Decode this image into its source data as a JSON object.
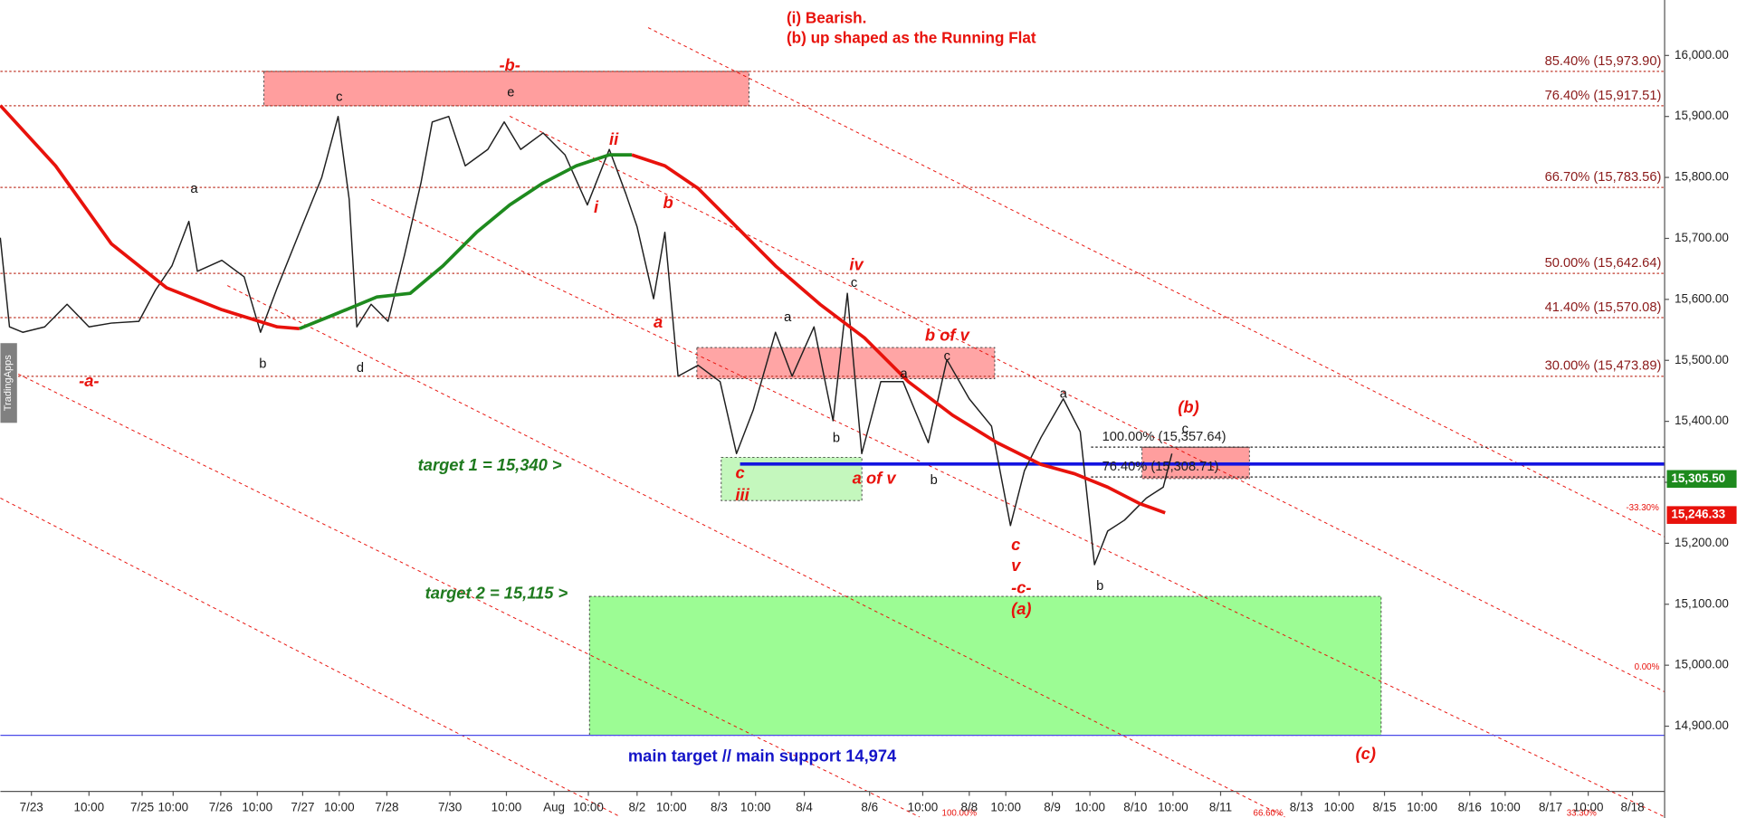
{
  "chart_data": {
    "type": "line",
    "notes": [
      "(i) Bearish.",
      "(b) up shaped as the Running Flat"
    ],
    "watermark": "TradingApps",
    "xticks": [
      "7/23",
      "10:00",
      "7/25",
      "10:00",
      "7/26",
      "10:00",
      "7/27",
      "10:00",
      "7/28",
      "7/30",
      "10:00",
      "Aug",
      "10:00",
      "8/2",
      "10:00",
      "8/3",
      "10:00",
      "8/4",
      "8/6",
      "10:00",
      "8/8",
      "10:00",
      "8/9",
      "10:00",
      "8/10",
      "10:00",
      "8/11",
      "8/13",
      "10:00",
      "8/15",
      "10:00",
      "8/16",
      "10:00",
      "8/17",
      "10:00",
      "8/18"
    ],
    "ylim": [
      14793,
      16091
    ],
    "yticks": [
      {
        "value": 14900,
        "label": "14,900.00"
      },
      {
        "value": 15000,
        "label": "15,000.00"
      },
      {
        "value": 15100,
        "label": "15,100.00"
      },
      {
        "value": 15200,
        "label": "15,200.00"
      },
      {
        "value": 15300,
        "label": "15,300.00"
      },
      {
        "value": 15400,
        "label": "15,400.00"
      },
      {
        "value": 15500,
        "label": "15,500.00"
      },
      {
        "value": 15600,
        "label": "15,600.00"
      },
      {
        "value": 15700,
        "label": "15,700.00"
      },
      {
        "value": 15800,
        "label": "15,800.00"
      },
      {
        "value": 15900,
        "label": "15,900.00"
      },
      {
        "value": 16000,
        "label": "16,000.00"
      }
    ],
    "series": [
      {
        "color": "#1f1f1f",
        "x": [
          -0.54,
          -0.38,
          -0.15,
          0.23,
          0.62,
          1.0,
          1.42,
          1.94,
          2.43,
          2.96,
          3.33,
          3.51,
          4.03,
          4.64,
          5.07,
          5.44,
          5.93,
          6.52,
          6.97,
          7.21,
          7.37,
          7.67,
          8.02,
          8.28,
          8.54,
          8.72,
          8.98,
          9.27,
          9.67,
          9.96,
          10.3,
          10.77,
          11.32,
          11.97,
          12.43,
          12.77,
          13.0,
          13.48,
          13.81,
          14.14,
          14.56,
          15.03,
          15.48,
          15.94,
          16.41,
          16.75,
          17.15,
          17.44,
          17.66,
          17.88,
          18.21,
          18.63,
          19.12,
          19.52,
          20.0,
          20.61,
          21.1,
          21.4,
          21.76,
          22.29,
          22.74,
          23.1,
          23.39,
          23.76,
          24.29,
          24.74,
          24.97
        ],
        "values": [
          15701,
          15555,
          15546,
          15555,
          15592,
          15555,
          15561,
          15564,
          15615,
          15655,
          15728,
          15646,
          15664,
          15637,
          15546,
          15619,
          15710,
          15800,
          15900,
          15764,
          15555,
          15592,
          15564,
          15673,
          15791,
          15891,
          15900,
          15819,
          15846,
          15891,
          15846,
          15873,
          15837,
          15755,
          15846,
          15773,
          15719,
          15601,
          15710,
          15474,
          15492,
          15465,
          15347,
          15419,
          15546,
          15474,
          15555,
          15401,
          15610,
          15347,
          15465,
          15465,
          15365,
          15501,
          15437,
          15392,
          15229,
          15319,
          15374,
          15437,
          15383,
          15165,
          15220,
          15238,
          15274,
          15292,
          15347
        ]
      },
      {
        "color": "#e8120c",
        "x": [
          -0.54,
          0.42,
          1.42,
          2.79,
          4.03,
          5.44,
          5.93,
          null,
          12.89,
          13.81,
          14.56,
          15.33,
          16.41,
          17.24,
          17.92,
          18.73,
          19.64,
          20.76,
          21.76,
          22.59,
          23.39,
          24.12,
          24.79
        ],
        "values": [
          15918,
          15819,
          15691,
          15619,
          15583,
          15555,
          15552,
          null,
          15837,
          15819,
          15782,
          15728,
          15655,
          15592,
          15537,
          15465,
          15410,
          15365,
          15329,
          15314,
          15292,
          15265,
          15250
        ]
      },
      {
        "color": "#1e8a1e",
        "x": [
          5.93,
          6.82,
          7.79,
          8.37,
          8.89,
          9.47,
          10.07,
          10.77,
          11.65,
          12.43,
          12.89
        ],
        "values": [
          15552,
          15574,
          15604,
          15610,
          15655,
          15710,
          15755,
          15791,
          15819,
          15837,
          15837
        ]
      }
    ],
    "fib_levels": [
      {
        "value": 15973.9,
        "label": "85.40% (15,973.90)"
      },
      {
        "value": 15917.51,
        "label": "76.40% (15,917.51)"
      },
      {
        "value": 15783.56,
        "label": "66.70% (15,783.56)"
      },
      {
        "value": 15642.64,
        "label": "50.00% (15,642.64)"
      },
      {
        "value": 15570.08,
        "label": "41.40% (15,570.08)"
      },
      {
        "value": 15473.89,
        "label": "30.00% (15,473.89)"
      }
    ],
    "fib_color": "#c0392b",
    "retracements": [
      {
        "value": 15357.64,
        "label": "100.00% (15,357.64)"
      },
      {
        "value": 15308.71,
        "label": "76.40% (15,308.71)"
      }
    ],
    "hlines": [
      {
        "value": 15330,
        "color": "#1414e0"
      },
      {
        "value": 14885,
        "color": "#4a4ae8"
      }
    ],
    "zones": [
      {
        "top": 15973.9,
        "bottom": 15917.51,
        "color": "#ff9e9e"
      },
      {
        "top": 15521,
        "bottom": 15470,
        "color": "#ffa5a5"
      },
      {
        "top": 15357.64,
        "bottom": 15306,
        "color": "#ff9e9e"
      },
      {
        "top": 15341,
        "bottom": 15270,
        "color": "#c4f7bd"
      },
      {
        "top": 15113,
        "bottom": 14885,
        "color": "#9cfc94"
      }
    ],
    "price_tags": [
      {
        "value": 15305.5,
        "label": "15,305.50",
        "color": "#1e8a1e"
      },
      {
        "value": 15246.33,
        "label": "15,246.33",
        "color": "#e8120c"
      }
    ],
    "channel_labels": [
      "-33.30%",
      "0.00%",
      "100.00%",
      "66.60%",
      "33.30%"
    ],
    "annotations": [
      {
        "text": "-b-",
        "color": "#e8120c"
      },
      {
        "text": "c",
        "color": "#111111"
      },
      {
        "text": "e",
        "color": "#111111"
      },
      {
        "text": "a",
        "color": "#111111"
      },
      {
        "text": "b",
        "color": "#111111"
      },
      {
        "text": "d",
        "color": "#111111"
      },
      {
        "text": "-a-",
        "color": "#e8120c"
      },
      {
        "text": "ii",
        "color": "#e8120c"
      },
      {
        "text": "i",
        "color": "#e8120c"
      },
      {
        "text": "b",
        "color": "#e8120c"
      },
      {
        "text": "a",
        "color": "#e8120c"
      },
      {
        "text": "iv",
        "color": "#e8120c"
      },
      {
        "text": "c",
        "color": "#111111"
      },
      {
        "text": "a",
        "color": "#111111"
      },
      {
        "text": "b of v",
        "color": "#e8120c"
      },
      {
        "text": "c",
        "color": "#111111"
      },
      {
        "text": "a",
        "color": "#111111"
      },
      {
        "text": "b",
        "color": "#111111"
      },
      {
        "text": "c",
        "color": "#e8120c"
      },
      {
        "text": "iii",
        "color": "#e8120c"
      },
      {
        "text": "a of v",
        "color": "#e8120c"
      },
      {
        "text": "b",
        "color": "#111111"
      },
      {
        "text": "a",
        "color": "#111111"
      },
      {
        "text": "(b)",
        "color": "#e8120c"
      },
      {
        "text": "c",
        "color": "#111111"
      },
      {
        "text": "c",
        "color": "#e8120c"
      },
      {
        "text": "v",
        "color": "#e8120c"
      },
      {
        "text": "-c-",
        "color": "#e8120c"
      },
      {
        "text": "(a)",
        "color": "#e8120c"
      },
      {
        "text": "b",
        "color": "#111111"
      },
      {
        "text": "(c)",
        "color": "#e8120c"
      },
      {
        "text": "target 1 = 15,340 >",
        "color": "#1e7a1e"
      },
      {
        "text": "target 2 = 15,115 >",
        "color": "#1e7a1e"
      },
      {
        "text": "main target // main support 14,974",
        "color": "#1414c8"
      }
    ]
  }
}
